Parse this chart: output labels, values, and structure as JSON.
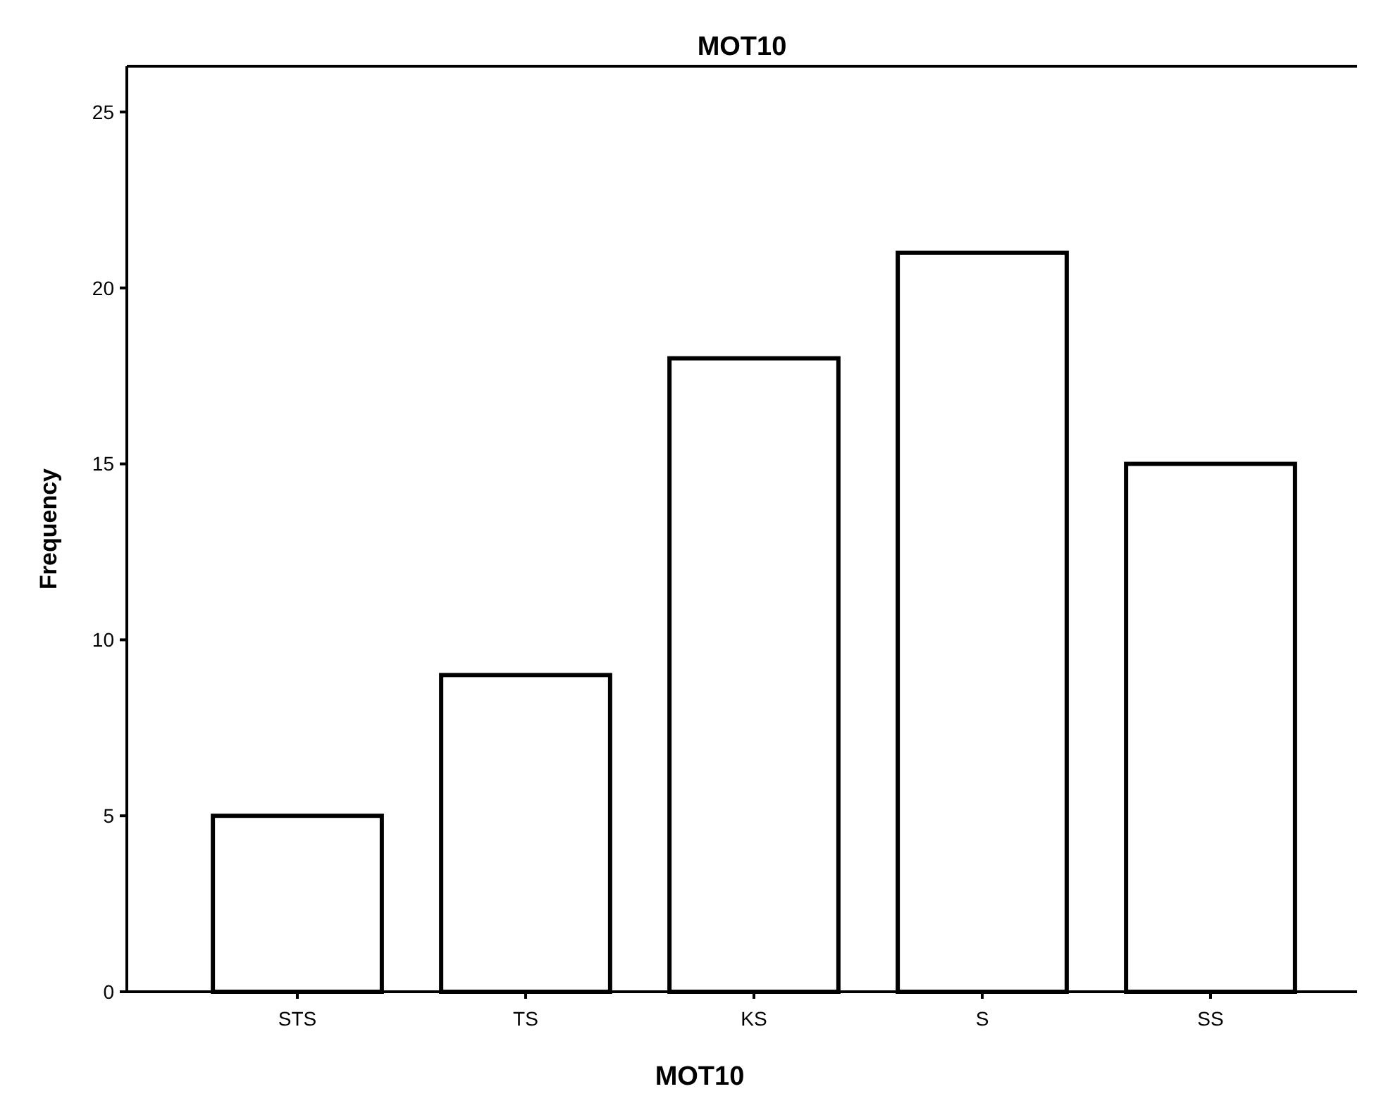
{
  "chart_data": {
    "type": "bar",
    "title": "MOT10",
    "xlabel": "MOT10",
    "ylabel": "Frequency",
    "categories": [
      "STS",
      "TS",
      "KS",
      "S",
      "SS"
    ],
    "values": [
      5,
      9,
      18,
      21,
      15
    ],
    "color": "#ffffff",
    "ylim": [
      0,
      26.3
    ],
    "yticks": [
      0,
      5,
      10,
      15,
      20,
      25
    ],
    "grid": false
  }
}
